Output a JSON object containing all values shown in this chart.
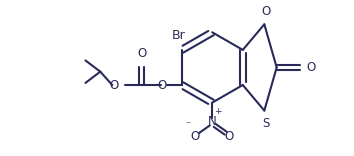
{
  "bg_color": "#ffffff",
  "line_color": "#2a2a5a",
  "line_width": 1.5,
  "font_size": 8.5,
  "figsize": [
    3.54,
    1.56
  ],
  "dpi": 100,
  "xlim": [
    0,
    10
  ],
  "ylim": [
    0,
    4.4
  ]
}
